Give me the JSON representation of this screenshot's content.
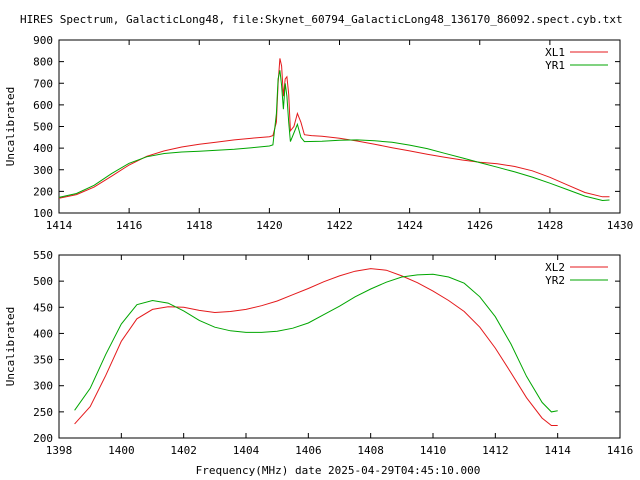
{
  "title": "HIRES Spectrum, GalacticLong48, file:Skynet_60794_GalacticLong48_136170_86092.spect.cyb.txt",
  "xlabel": "Frequency(MHz) date 2025-04-29T04:45:10.000",
  "chart_data": [
    {
      "type": "line",
      "title": "HIRES Spectrum, GalacticLong48, file:Skynet_60794_GalacticLong48_136170_86092.spect.cyb.txt",
      "xlabel": "",
      "ylabel": "Uncalibrated",
      "xlim": [
        1414,
        1430
      ],
      "ylim": [
        100,
        900
      ],
      "xticks": [
        1414,
        1416,
        1418,
        1420,
        1422,
        1424,
        1426,
        1428,
        1430
      ],
      "yticks": [
        100,
        200,
        300,
        400,
        500,
        600,
        700,
        800,
        900
      ],
      "grid": false,
      "legend": "top-right",
      "series": [
        {
          "name": "XL1",
          "color": "#e41a1c",
          "points": [
            [
              1414.0,
              168
            ],
            [
              1414.5,
              185
            ],
            [
              1415.0,
              220
            ],
            [
              1415.5,
              270
            ],
            [
              1416.0,
              322
            ],
            [
              1416.5,
              362
            ],
            [
              1417.0,
              387
            ],
            [
              1417.5,
              405
            ],
            [
              1418.0,
              418
            ],
            [
              1418.5,
              428
            ],
            [
              1419.0,
              438
            ],
            [
              1419.5,
              446
            ],
            [
              1420.0,
              453
            ],
            [
              1420.1,
              458
            ],
            [
              1420.2,
              520
            ],
            [
              1420.25,
              700
            ],
            [
              1420.3,
              815
            ],
            [
              1420.35,
              780
            ],
            [
              1420.4,
              640
            ],
            [
              1420.45,
              720
            ],
            [
              1420.5,
              730
            ],
            [
              1420.55,
              650
            ],
            [
              1420.6,
              480
            ],
            [
              1420.7,
              500
            ],
            [
              1420.8,
              560
            ],
            [
              1420.9,
              520
            ],
            [
              1421.0,
              462
            ],
            [
              1421.2,
              458
            ],
            [
              1421.5,
              455
            ],
            [
              1422.0,
              446
            ],
            [
              1422.5,
              433
            ],
            [
              1423.0,
              418
            ],
            [
              1423.5,
              402
            ],
            [
              1424.0,
              387
            ],
            [
              1424.5,
              372
            ],
            [
              1425.0,
              358
            ],
            [
              1425.5,
              345
            ],
            [
              1426.0,
              335
            ],
            [
              1426.5,
              328
            ],
            [
              1427.0,
              315
            ],
            [
              1427.5,
              295
            ],
            [
              1428.0,
              265
            ],
            [
              1428.5,
              230
            ],
            [
              1429.0,
              195
            ],
            [
              1429.5,
              175
            ],
            [
              1429.7,
              175
            ]
          ]
        },
        {
          "name": "YR1",
          "color": "#00a600",
          "points": [
            [
              1414.0,
              172
            ],
            [
              1414.5,
              190
            ],
            [
              1415.0,
              228
            ],
            [
              1415.5,
              282
            ],
            [
              1416.0,
              330
            ],
            [
              1416.5,
              360
            ],
            [
              1417.0,
              375
            ],
            [
              1417.5,
              382
            ],
            [
              1418.0,
              386
            ],
            [
              1418.5,
              390
            ],
            [
              1419.0,
              395
            ],
            [
              1419.5,
              402
            ],
            [
              1420.0,
              410
            ],
            [
              1420.1,
              415
            ],
            [
              1420.2,
              560
            ],
            [
              1420.25,
              720
            ],
            [
              1420.3,
              760
            ],
            [
              1420.35,
              690
            ],
            [
              1420.4,
              580
            ],
            [
              1420.45,
              700
            ],
            [
              1420.5,
              640
            ],
            [
              1420.55,
              520
            ],
            [
              1420.6,
              430
            ],
            [
              1420.7,
              470
            ],
            [
              1420.8,
              510
            ],
            [
              1420.9,
              450
            ],
            [
              1421.0,
              430
            ],
            [
              1421.5,
              432
            ],
            [
              1422.0,
              436
            ],
            [
              1422.5,
              438
            ],
            [
              1423.0,
              434
            ],
            [
              1423.5,
              427
            ],
            [
              1424.0,
              414
            ],
            [
              1424.5,
              398
            ],
            [
              1425.0,
              376
            ],
            [
              1425.5,
              355
            ],
            [
              1426.0,
              333
            ],
            [
              1426.5,
              312
            ],
            [
              1427.0,
              290
            ],
            [
              1427.5,
              266
            ],
            [
              1428.0,
              238
            ],
            [
              1428.5,
              208
            ],
            [
              1429.0,
              178
            ],
            [
              1429.5,
              158
            ],
            [
              1429.7,
              160
            ]
          ]
        }
      ]
    },
    {
      "type": "line",
      "title": "",
      "xlabel": "Frequency(MHz) date 2025-04-29T04:45:10.000",
      "ylabel": "Uncalibrated",
      "xlim": [
        1398,
        1416
      ],
      "ylim": [
        200,
        550
      ],
      "xticks": [
        1398,
        1400,
        1402,
        1404,
        1406,
        1408,
        1410,
        1412,
        1414,
        1416
      ],
      "yticks": [
        200,
        250,
        300,
        350,
        400,
        450,
        500,
        550
      ],
      "grid": false,
      "legend": "top-right",
      "series": [
        {
          "name": "XL2",
          "color": "#e41a1c",
          "points": [
            [
              1398.5,
              227
            ],
            [
              1399.0,
              260
            ],
            [
              1399.5,
              320
            ],
            [
              1400.0,
              385
            ],
            [
              1400.5,
              428
            ],
            [
              1401.0,
              446
            ],
            [
              1401.5,
              451
            ],
            [
              1402.0,
              450
            ],
            [
              1402.5,
              444
            ],
            [
              1403.0,
              440
            ],
            [
              1403.5,
              442
            ],
            [
              1404.0,
              446
            ],
            [
              1404.5,
              453
            ],
            [
              1405.0,
              462
            ],
            [
              1405.5,
              474
            ],
            [
              1406.0,
              486
            ],
            [
              1406.5,
              499
            ],
            [
              1407.0,
              510
            ],
            [
              1407.5,
              519
            ],
            [
              1408.0,
              524
            ],
            [
              1408.5,
              521
            ],
            [
              1409.0,
              510
            ],
            [
              1409.5,
              497
            ],
            [
              1410.0,
              481
            ],
            [
              1410.5,
              463
            ],
            [
              1411.0,
              442
            ],
            [
              1411.5,
              412
            ],
            [
              1412.0,
              372
            ],
            [
              1412.5,
              325
            ],
            [
              1413.0,
              277
            ],
            [
              1413.5,
              238
            ],
            [
              1413.8,
              224
            ],
            [
              1414.0,
              224
            ]
          ]
        },
        {
          "name": "YR2",
          "color": "#00a600",
          "points": [
            [
              1398.5,
              253
            ],
            [
              1399.0,
              295
            ],
            [
              1399.5,
              360
            ],
            [
              1400.0,
              418
            ],
            [
              1400.5,
              455
            ],
            [
              1401.0,
              463
            ],
            [
              1401.5,
              458
            ],
            [
              1402.0,
              443
            ],
            [
              1402.5,
              425
            ],
            [
              1403.0,
              412
            ],
            [
              1403.5,
              405
            ],
            [
              1404.0,
              402
            ],
            [
              1404.5,
              402
            ],
            [
              1405.0,
              404
            ],
            [
              1405.5,
              410
            ],
            [
              1406.0,
              420
            ],
            [
              1406.5,
              436
            ],
            [
              1407.0,
              452
            ],
            [
              1407.5,
              470
            ],
            [
              1408.0,
              485
            ],
            [
              1408.5,
              498
            ],
            [
              1409.0,
              508
            ],
            [
              1409.5,
              512
            ],
            [
              1410.0,
              513
            ],
            [
              1410.5,
              508
            ],
            [
              1411.0,
              496
            ],
            [
              1411.5,
              470
            ],
            [
              1412.0,
              432
            ],
            [
              1412.5,
              380
            ],
            [
              1413.0,
              318
            ],
            [
              1413.5,
              268
            ],
            [
              1413.8,
              250
            ],
            [
              1414.0,
              252
            ]
          ]
        }
      ]
    }
  ]
}
